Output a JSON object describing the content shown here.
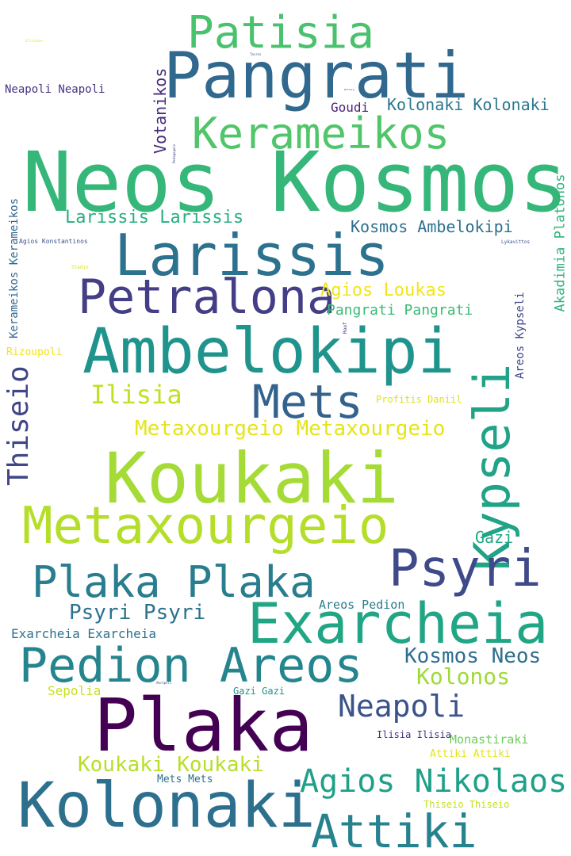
{
  "words": [
    {
      "text": "Neos Kosmos",
      "color": "#35b779"
    },
    {
      "text": "Pangrati",
      "color": "#31688e"
    },
    {
      "text": "Patisia",
      "color": "#4ac16d"
    },
    {
      "text": "Kerameikos",
      "color": "#51c56a"
    },
    {
      "text": "Larissis",
      "color": "#2c728e"
    },
    {
      "text": "Petralona",
      "color": "#433e85"
    },
    {
      "text": "Ambelokipi",
      "color": "#1f948c"
    },
    {
      "text": "Mets",
      "color": "#33638d"
    },
    {
      "text": "Kypseli",
      "color": "#20a386"
    },
    {
      "text": "Koukaki",
      "color": "#a5db36"
    },
    {
      "text": "Metaxourgeio",
      "color": "#b5de2b"
    },
    {
      "text": "Psyri",
      "color": "#3e4a89"
    },
    {
      "text": "Plaka Plaka",
      "color": "#287d8e"
    },
    {
      "text": "Exarcheia",
      "color": "#21a685"
    },
    {
      "text": "Pedion Areos",
      "color": "#25858e"
    },
    {
      "text": "Plaka",
      "color": "#440154"
    },
    {
      "text": "Kolonaki",
      "color": "#2d708e"
    },
    {
      "text": "Attiki",
      "color": "#26828e"
    },
    {
      "text": "Agios Nikolaos",
      "color": "#1fa088"
    },
    {
      "text": "Neapoli",
      "color": "#3b528b"
    },
    {
      "text": "Thiseio",
      "color": "#404588"
    },
    {
      "text": "Ilisia",
      "color": "#c2df23"
    },
    {
      "text": "Metaxourgeio Metaxourgeio",
      "color": "#e5e419"
    },
    {
      "text": "Larissis Larissis",
      "color": "#29af7f"
    },
    {
      "text": "Kolonaki Kolonaki",
      "color": "#2a788e"
    },
    {
      "text": "Kosmos Ambelokipi",
      "color": "#2d708e"
    },
    {
      "text": "Agios Loukas",
      "color": "#f1e51d"
    },
    {
      "text": "Pangrati Pangrati",
      "color": "#3bbb75"
    },
    {
      "text": "Votanikos",
      "color": "#472c7a"
    },
    {
      "text": "Akadimia Platonos",
      "color": "#2fb47c"
    },
    {
      "text": "Kerameikos Kerameikos",
      "color": "#31688e"
    },
    {
      "text": "Areos Kypseli",
      "color": "#414487"
    },
    {
      "text": "Goudi",
      "color": "#482475"
    },
    {
      "text": "Neapoli Neapoli",
      "color": "#46327e"
    },
    {
      "text": "Koukaki Koukaki",
      "color": "#b8de29"
    },
    {
      "text": "Psyri Psyri",
      "color": "#2c728e"
    },
    {
      "text": "Exarcheia Exarcheia",
      "color": "#2c728e"
    },
    {
      "text": "Kosmos Neos",
      "color": "#2e6e8e"
    },
    {
      "text": "Kolonos",
      "color": "#a0da39"
    },
    {
      "text": "Gazi",
      "color": "#22a884"
    },
    {
      "text": "Areos Pedion",
      "color": "#287c8e"
    },
    {
      "text": "Monastiraki",
      "color": "#6ccd5a"
    },
    {
      "text": "Sepolia",
      "color": "#c8e020"
    },
    {
      "text": "Gazi Gazi",
      "color": "#21918c"
    },
    {
      "text": "Ilisia Ilisia",
      "color": "#472d7b"
    },
    {
      "text": "Attiki Attiki",
      "color": "#e2e418"
    },
    {
      "text": "Mets Mets",
      "color": "#2e6f8e"
    },
    {
      "text": "Thiseio Thiseio",
      "color": "#c5e021"
    },
    {
      "text": "Profitis Daniil",
      "color": "#dde318"
    },
    {
      "text": "Rizoupoli",
      "color": "#f2e51d"
    },
    {
      "text": "Agios Konstantinos",
      "color": "#3b528b"
    },
    {
      "text": "Lykavittos",
      "color": "#3b528b"
    },
    {
      "text": "Stadio",
      "color": "#d8e219"
    },
    {
      "text": "Rouf",
      "color": "#482878"
    },
    {
      "text": "Pedagogeio",
      "color": "#433e85"
    },
    {
      "text": "Kifisia",
      "color": "#471063"
    },
    {
      "text": "Tavros",
      "color": "#38598c"
    },
    {
      "text": "Akropoli",
      "color": "#3e4989"
    },
    {
      "text": "Ellinikon",
      "color": "#e7e419"
    }
  ]
}
